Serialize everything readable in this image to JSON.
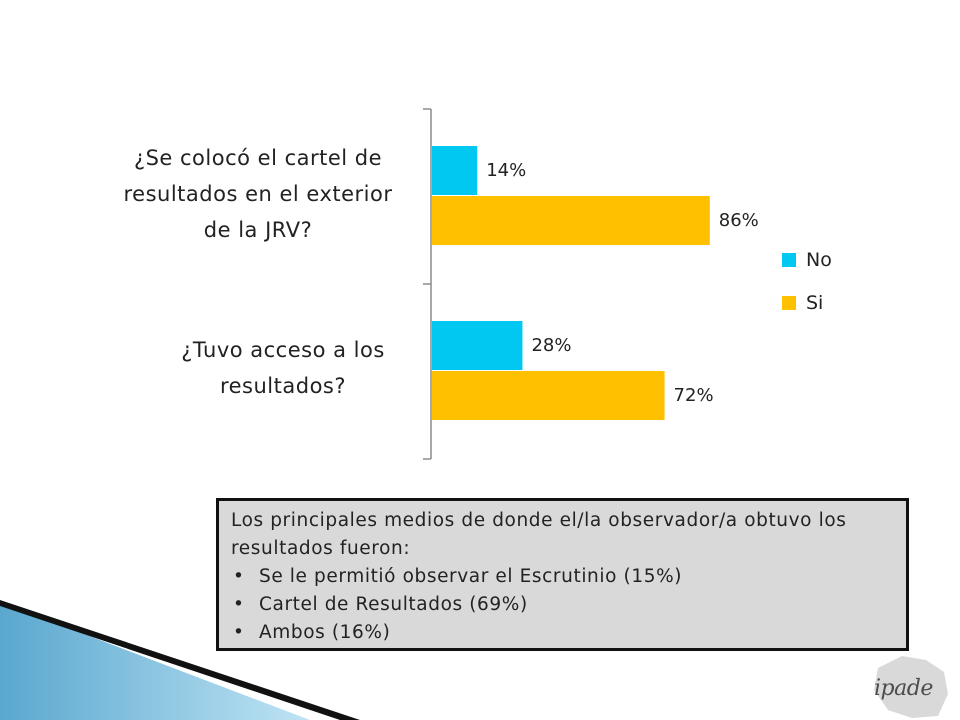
{
  "chart_data": {
    "type": "bar",
    "orientation": "horizontal",
    "categories": [
      "¿Se colocó el cartel de resultados en el exterior de la JRV?",
      "¿Tuvo acceso a los resultados?"
    ],
    "category_lines": [
      [
        "¿Se colocó el cartel de",
        "resultados en el exterior",
        "de la JRV?"
      ],
      [
        "¿Tuvo acceso a los",
        "resultados?"
      ]
    ],
    "series": [
      {
        "name": "No",
        "values": [
          14,
          28
        ],
        "labels": [
          "14%",
          "28%"
        ],
        "color": "#00c8f0"
      },
      {
        "name": "Si",
        "values": [
          86,
          72
        ],
        "labels": [
          "86%",
          "72%"
        ],
        "color": "#ffc000"
      }
    ],
    "xlim": [
      0,
      100
    ],
    "grid": false,
    "legend_position": "right"
  },
  "notes": {
    "intro": "Los principales medios de donde el/la observador/a obtuvo los resultados fueron:",
    "items": [
      "Se le permitió observar el Escrutinio (15%)",
      "Cartel de Resultados  (69%)",
      "Ambos (16%)"
    ]
  },
  "logo": {
    "text": "ipade"
  }
}
